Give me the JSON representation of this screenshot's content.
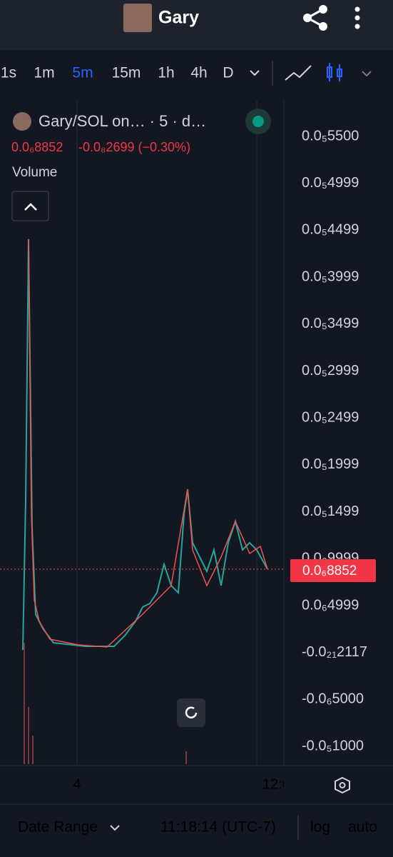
{
  "header": {
    "title": "Gary"
  },
  "timeframes": [
    "1s",
    "1m",
    "5m",
    "15m",
    "1h",
    "4h",
    "D"
  ],
  "selected_timeframe": 2,
  "legend": {
    "symbol": "Gary/SOL on… · 5 · d…",
    "price": "0.0₆8852",
    "change": "-0.0₈2699 (−0.30%)",
    "volume": "Volume"
  },
  "price_axis": [
    "0.0₅5500",
    "0.0₅4999",
    "0.0₅4499",
    "0.0₅3999",
    "0.0₅3499",
    "0.0₅2999",
    "0.0₅2499",
    "0.0₅1999",
    "0.0₅1499",
    "0.0₆9999",
    "0.0₆4999",
    "-0.0₂₁2117",
    "-0.0₆5000",
    "-0.0₅1000"
  ],
  "last_price": "0.0₆8852",
  "time_axis": [
    "4",
    "12:0"
  ],
  "footer": {
    "date_range": "Date Range",
    "time": "11:18:14 (UTC-7)",
    "log": "log",
    "auto": "auto"
  }
}
